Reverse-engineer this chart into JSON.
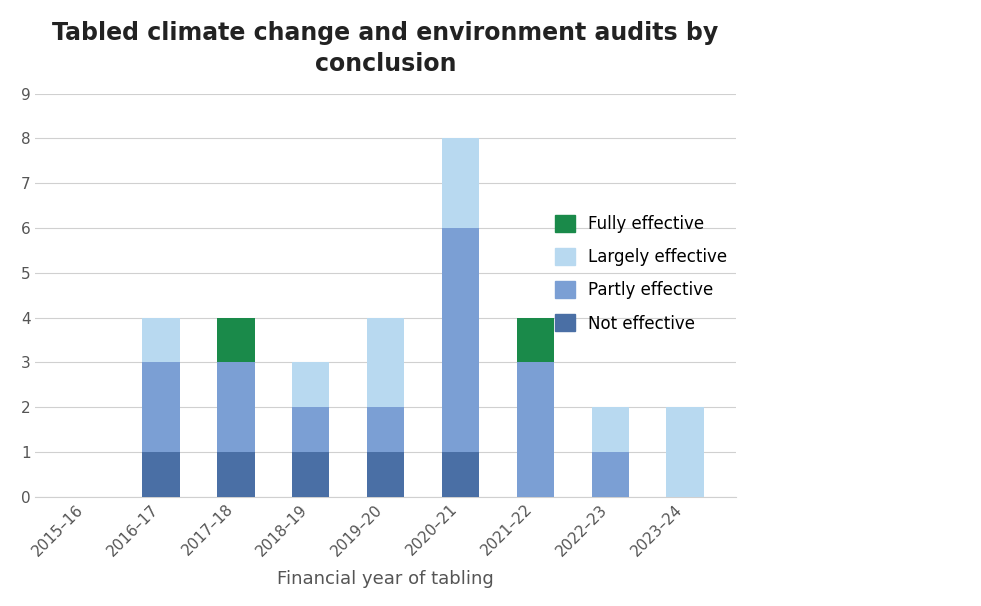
{
  "categories": [
    "2015–16",
    "2016–17",
    "2017–18",
    "2018–19",
    "2019–20",
    "2020–21",
    "2021–22",
    "2022–23",
    "2023–24"
  ],
  "not_effective": [
    0,
    1,
    1,
    1,
    1,
    1,
    0,
    0,
    0
  ],
  "partly_effective": [
    0,
    2,
    2,
    1,
    1,
    5,
    3,
    1,
    0
  ],
  "largely_effective": [
    0,
    1,
    0,
    1,
    2,
    2,
    0,
    1,
    2
  ],
  "fully_effective": [
    0,
    0,
    1,
    0,
    0,
    0,
    1,
    0,
    0
  ],
  "color_not_effective": "#4a6fa5",
  "color_partly_effective": "#7b9fd4",
  "color_largely_effective": "#b8d9f0",
  "color_fully_effective": "#1a8a4a",
  "title_line1": "Tabled climate change and environment audits by",
  "title_line2": "conclusion",
  "xlabel": "Financial year of tabling",
  "ylim": [
    0,
    9
  ],
  "yticks": [
    0,
    1,
    2,
    3,
    4,
    5,
    6,
    7,
    8,
    9
  ],
  "legend_labels": [
    "Fully effective",
    "Largely effective",
    "Partly effective",
    "Not effective"
  ],
  "title_fontsize": 17,
  "label_fontsize": 13,
  "tick_fontsize": 11,
  "legend_fontsize": 12,
  "background_color": "#ffffff",
  "grid_color": "#d0d0d0",
  "text_color": "#555555",
  "title_color": "#222222",
  "bar_width": 0.5
}
